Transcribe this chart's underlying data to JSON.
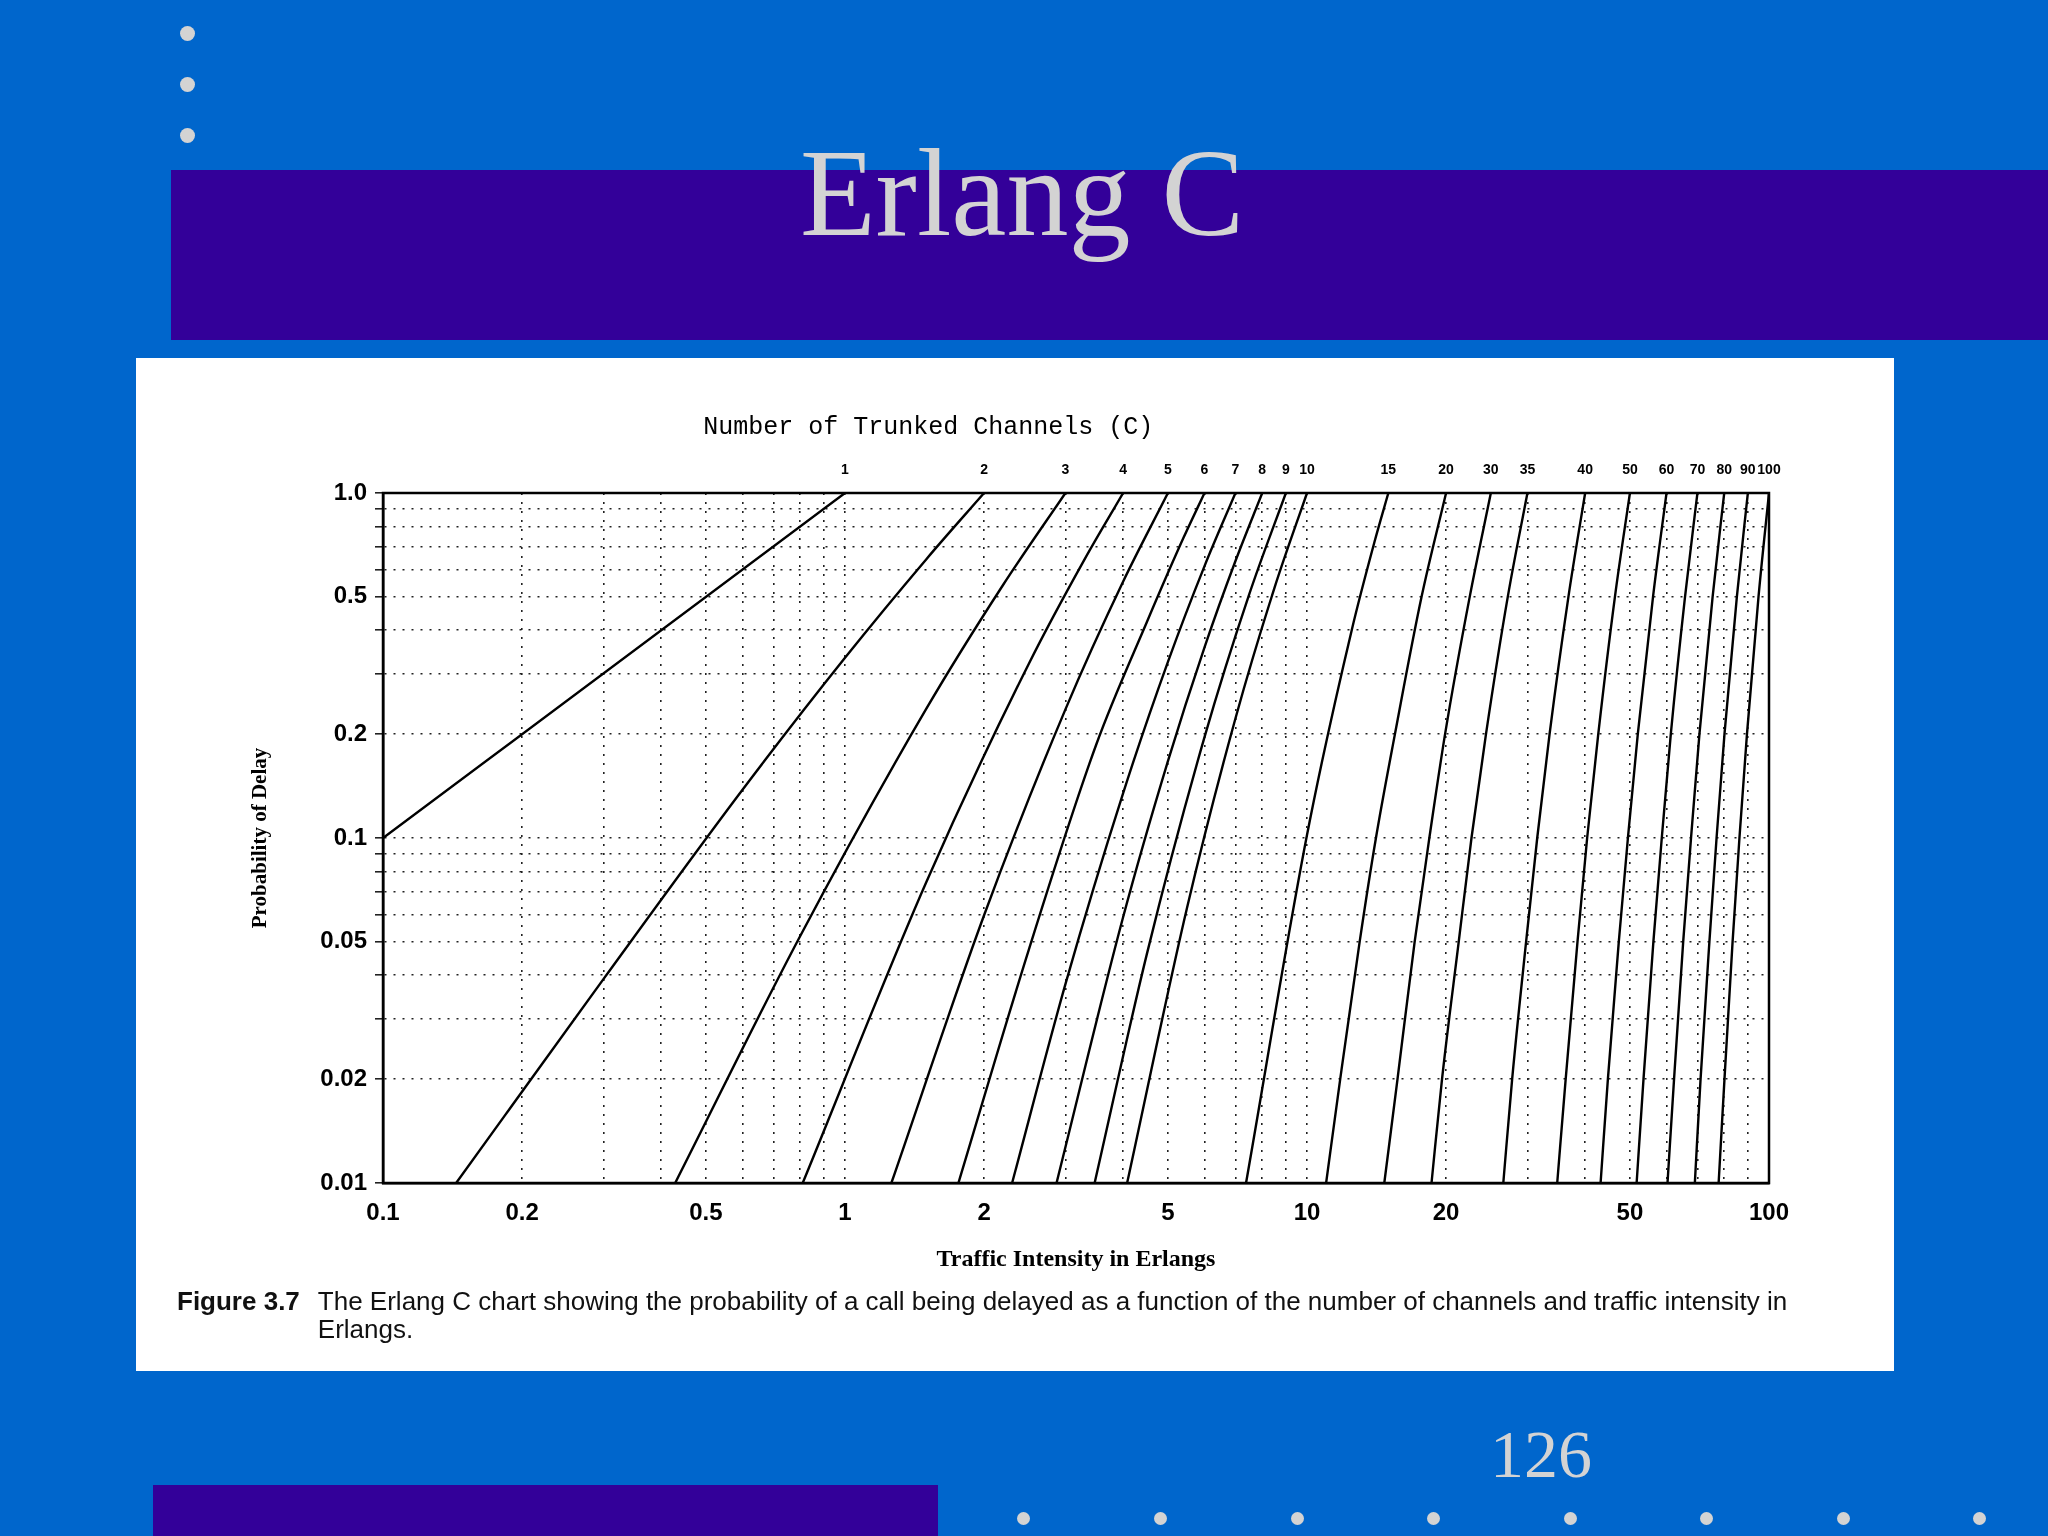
{
  "chart_data": {
    "type": "line",
    "title": "Erlang C",
    "xlabel": "Traffic Intensity in Erlangs",
    "ylabel": "Probability of Delay",
    "legend_title": "Number of Trunked Channels (C)",
    "annotations": [
      "Figure 3.7",
      "The Erlang C chart showing the probability of a call being delayed as a function of the number of channels and traffic intensity in Erlangs.",
      "126"
    ],
    "log": "xy",
    "grid": true,
    "legend": false,
    "xlim": [
      0.1,
      100
    ],
    "ylim": [
      0.01,
      1
    ],
    "xticks": [
      0.1,
      0.2,
      {
        "value": 0.3,
        "label": null
      },
      {
        "value": 0.4,
        "label": null
      },
      0.5,
      {
        "value": 0.6,
        "label": null
      },
      {
        "value": 0.7,
        "label": null
      },
      {
        "value": 0.8,
        "label": null
      },
      {
        "value": 0.9,
        "label": null
      },
      1,
      2,
      {
        "value": 3,
        "label": null
      },
      {
        "value": 4,
        "label": null
      },
      5,
      {
        "value": 6,
        "label": null
      },
      {
        "value": 7,
        "label": null
      },
      {
        "value": 8,
        "label": null
      },
      {
        "value": 9,
        "label": null
      },
      10,
      20,
      {
        "value": 30,
        "label": null
      },
      {
        "value": 40,
        "label": null
      },
      50,
      {
        "value": 60,
        "label": null
      },
      {
        "value": 70,
        "label": null
      },
      {
        "value": 80,
        "label": null
      },
      {
        "value": 90,
        "label": null
      },
      100
    ],
    "yticks": [
      0.01,
      0.02,
      {
        "value": 0.03,
        "label": null
      },
      {
        "value": 0.04,
        "label": null
      },
      0.05,
      {
        "value": 0.06,
        "label": null
      },
      {
        "value": 0.07,
        "label": null
      },
      {
        "value": 0.08,
        "label": null
      },
      {
        "value": 0.09,
        "label": null
      },
      0.1,
      0.2,
      {
        "value": 0.3,
        "label": null
      },
      {
        "value": 0.4,
        "label": null
      },
      0.5,
      {
        "value": 0.6,
        "label": null
      },
      {
        "value": 0.7,
        "label": null
      },
      {
        "value": 0.8,
        "label": null
      },
      {
        "value": 0.9,
        "label": null
      },
      {
        "value": 1,
        "label": "1.0"
      }
    ],
    "series": [
      {
        "name": "1",
        "color": "#000000",
        "x": [
          0.1,
          1
        ],
        "values": [
          0.1,
          1
        ]
      },
      {
        "name": "2",
        "color": "#000000",
        "x": [
          0.144,
          0.3,
          0.6,
          1,
          1.5,
          2
        ],
        "values": [
          0.01,
          0.039,
          0.138,
          0.333,
          0.643,
          1
        ]
      },
      {
        "name": "3",
        "color": "#000000",
        "x": [
          0.429,
          0.8,
          1.5,
          2.2,
          3
        ],
        "values": [
          0.01,
          0.052,
          0.237,
          0.542,
          1
        ]
      },
      {
        "name": "4",
        "color": "#000000",
        "x": [
          0.81,
          1.5,
          2.5,
          3.3,
          4
        ],
        "values": [
          0.01,
          0.0746,
          0.32,
          0.642,
          1
        ]
      },
      {
        "name": "5",
        "color": "#000000",
        "x": [
          1.26,
          2,
          3,
          4,
          5
        ],
        "values": [
          0.01,
          0.0597,
          0.236,
          0.554,
          1
        ]
      },
      {
        "name": "6",
        "color": "#000000",
        "x": [
          1.76,
          2.5,
          3.5,
          4.5,
          5.4,
          6
        ],
        "values": [
          0.01,
          0.0475,
          0.187,
          0.422,
          0.74,
          1
        ]
      },
      {
        "name": "7",
        "color": "#000000",
        "x": [
          2.3,
          3,
          4,
          5,
          6,
          7
        ],
        "values": [
          0.01,
          0.0377,
          0.135,
          0.324,
          0.614,
          1
        ]
      },
      {
        "name": "8",
        "color": "#000000",
        "x": [
          2.87,
          4,
          5,
          6,
          7,
          8
        ],
        "values": [
          0.01,
          0.059,
          0.167,
          0.357,
          0.635,
          1
        ]
      },
      {
        "name": "9",
        "color": "#000000",
        "x": [
          3.47,
          4.5,
          6,
          7.5,
          9
        ],
        "values": [
          0.01,
          0.046,
          0.196,
          0.509,
          1
        ]
      },
      {
        "name": "10",
        "color": "#000000",
        "x": [
          4.08,
          5.5,
          7,
          8.5,
          10
        ],
        "values": [
          0.01,
          0.0628,
          0.222,
          0.53,
          1
        ]
      },
      {
        "name": "15",
        "color": "#000000",
        "x": [
          7.38,
          10,
          12.5,
          14,
          15
        ],
        "values": [
          0.01,
          0.102,
          0.401,
          0.722,
          1
        ]
      },
      {
        "name": "20",
        "color": "#000000",
        "x": [
          11,
          11.8,
          13,
          14.1,
          15.5,
          17.7,
          20
        ],
        "values": [
          0.01,
          0.02,
          0.05,
          0.1,
          0.2,
          0.5,
          1
        ]
      },
      {
        "name": "30",
        "color": "#000000",
        "x": [
          14.7,
          15.7,
          17.1,
          18.4,
          19.9,
          22.5,
          25
        ],
        "values": [
          0.01,
          0.02,
          0.05,
          0.1,
          0.2,
          0.5,
          1
        ]
      },
      {
        "name": "35",
        "color": "#000000",
        "x": [
          18.6,
          19.6,
          21.3,
          22.7,
          24.4,
          27.2,
          30
        ],
        "values": [
          0.01,
          0.02,
          0.05,
          0.1,
          0.2,
          0.5,
          1
        ]
      },
      {
        "name": "40",
        "color": "#000000",
        "x": [
          26.6,
          27.8,
          29.8,
          31.5,
          33.5,
          36.8,
          40
        ],
        "values": [
          0.01,
          0.02,
          0.05,
          0.1,
          0.2,
          0.5,
          1
        ]
      },
      {
        "name": "50",
        "color": "#000000",
        "x": [
          34.8,
          36.3,
          38.5,
          40.4,
          42.7,
          46.4,
          50
        ],
        "values": [
          0.01,
          0.02,
          0.05,
          0.1,
          0.2,
          0.5,
          1
        ]
      },
      {
        "name": "60",
        "color": "#000000",
        "x": [
          43.2,
          44.8,
          47.3,
          49.5,
          52,
          56.1,
          60
        ],
        "values": [
          0.01,
          0.02,
          0.05,
          0.1,
          0.2,
          0.5,
          1
        ]
      },
      {
        "name": "70",
        "color": "#000000",
        "x": [
          51.7,
          53.5,
          56.2,
          58.6,
          61.3,
          65.8,
          70
        ],
        "values": [
          0.01,
          0.02,
          0.05,
          0.1,
          0.2,
          0.5,
          1
        ]
      },
      {
        "name": "80",
        "color": "#000000",
        "x": [
          60.3,
          62.3,
          65.2,
          67.8,
          70.7,
          75.5,
          80
        ],
        "values": [
          0.01,
          0.02,
          0.05,
          0.1,
          0.2,
          0.5,
          1
        ]
      },
      {
        "name": "90",
        "color": "#000000",
        "x": [
          69.1,
          71.1,
          74.3,
          77,
          80.1,
          85.2,
          90
        ],
        "values": [
          0.01,
          0.02,
          0.05,
          0.1,
          0.2,
          0.5,
          1
        ]
      },
      {
        "name": "100",
        "color": "#000000",
        "x": [
          77.8,
          80.1,
          83.4,
          86.3,
          89.6,
          94.9,
          100
        ],
        "values": [
          0.01,
          0.02,
          0.05,
          0.1,
          0.2,
          0.5,
          1
        ]
      }
    ]
  }
}
